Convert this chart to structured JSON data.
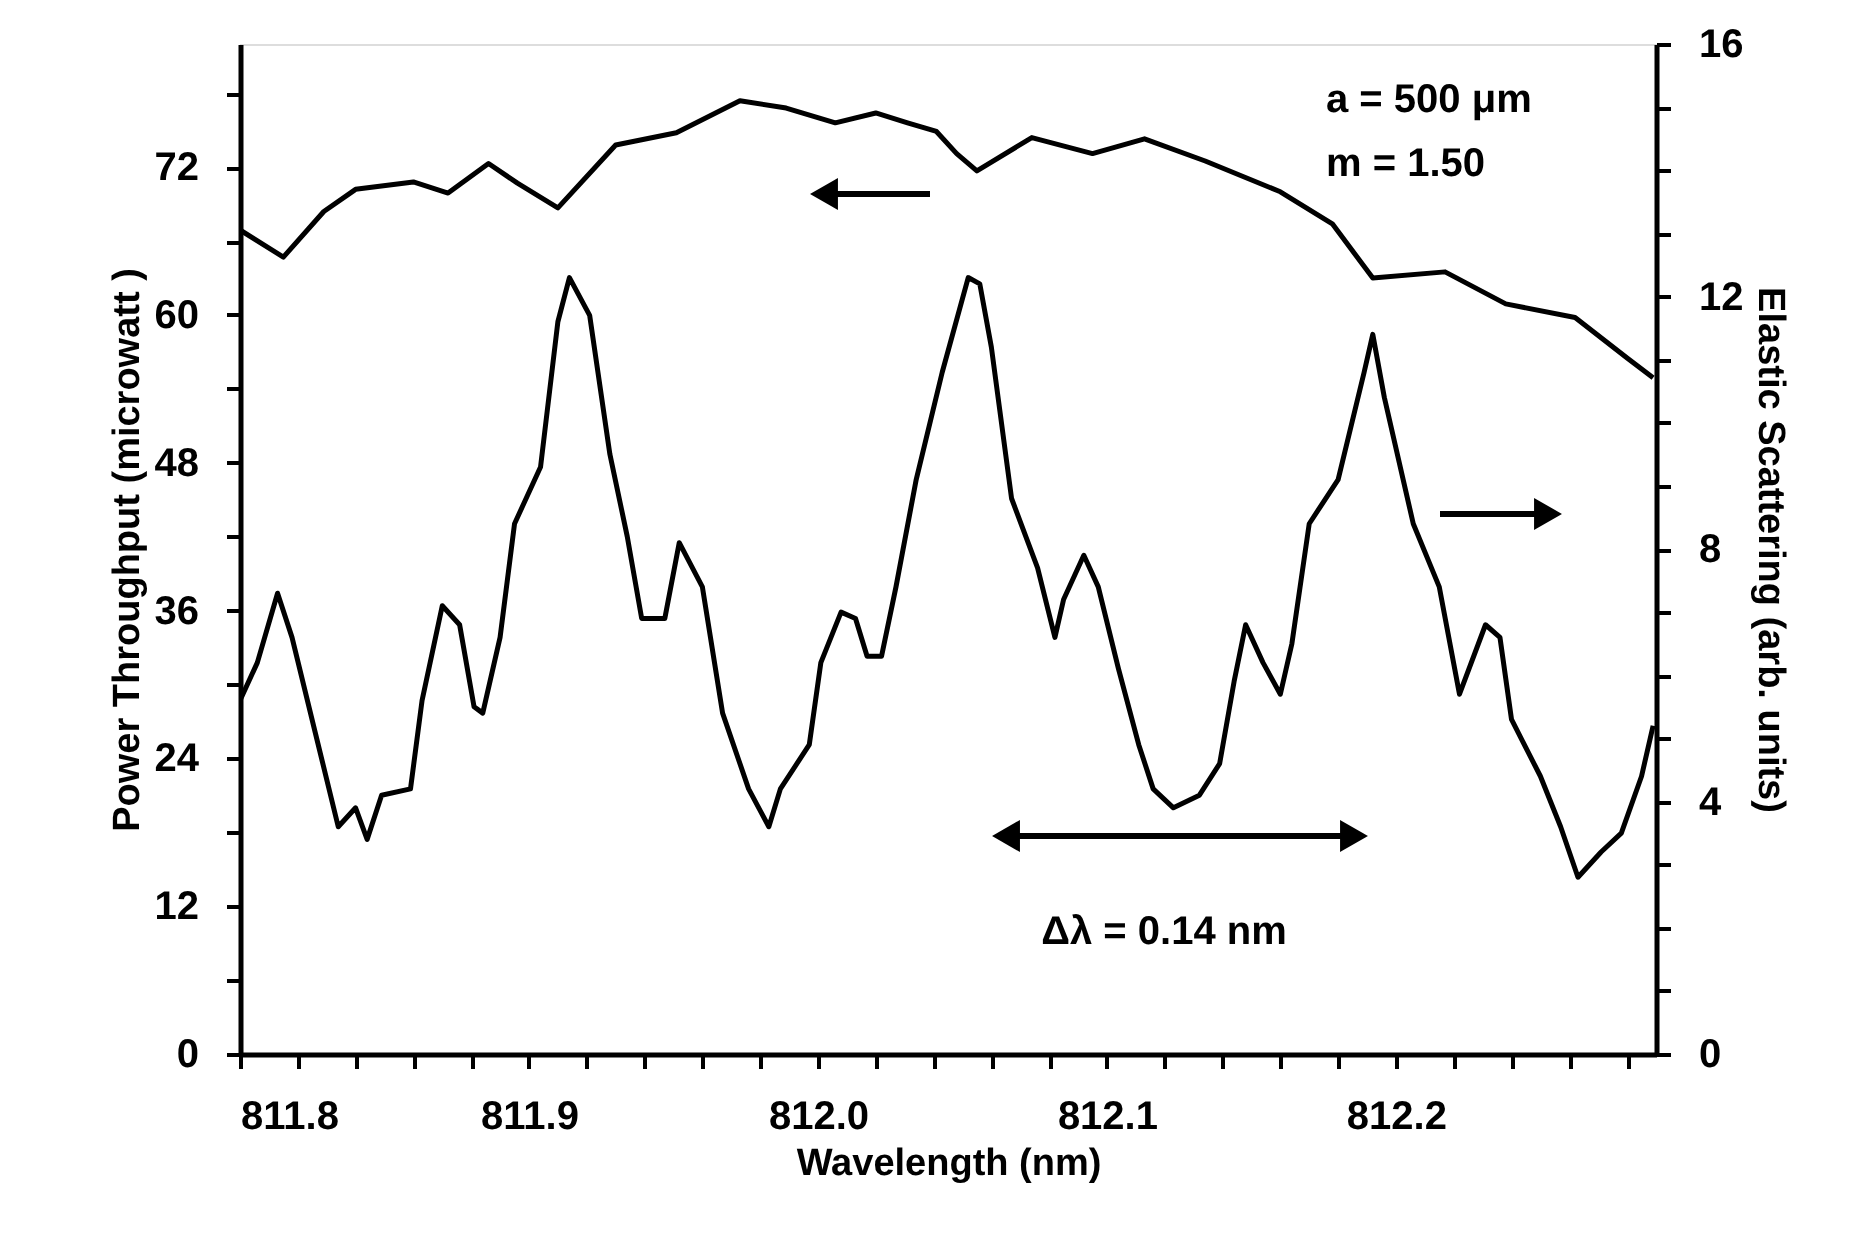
{
  "chart_data": {
    "type": "line",
    "xlabel": "Wavelength (nm)",
    "ylabel": "Power Throughput (microwatt )",
    "y2label": "Elastic Scattering (arb. units)",
    "xlim": [
      811.8,
      812.29
    ],
    "ylim": [
      0,
      82
    ],
    "y2lim": [
      0,
      16
    ],
    "xticks": [
      {
        "value": 811.8,
        "label": "811.8"
      },
      {
        "value": 811.82,
        "label": null
      },
      {
        "value": 811.84,
        "label": null
      },
      {
        "value": 811.86,
        "label": null
      },
      {
        "value": 811.88,
        "label": null
      },
      {
        "value": 811.9,
        "label": "811.9"
      },
      {
        "value": 811.92,
        "label": null
      },
      {
        "value": 811.94,
        "label": null
      },
      {
        "value": 811.96,
        "label": null
      },
      {
        "value": 811.98,
        "label": null
      },
      {
        "value": 812.0,
        "label": "812.0"
      },
      {
        "value": 812.02,
        "label": null
      },
      {
        "value": 812.04,
        "label": null
      },
      {
        "value": 812.06,
        "label": null
      },
      {
        "value": 812.08,
        "label": null
      },
      {
        "value": 812.1,
        "label": "812.1"
      },
      {
        "value": 812.12,
        "label": null
      },
      {
        "value": 812.14,
        "label": null
      },
      {
        "value": 812.16,
        "label": null
      },
      {
        "value": 812.18,
        "label": null
      },
      {
        "value": 812.2,
        "label": "812.2"
      },
      {
        "value": 812.22,
        "label": null
      },
      {
        "value": 812.24,
        "label": null
      },
      {
        "value": 812.26,
        "label": null
      },
      {
        "value": 812.28,
        "label": null
      }
    ],
    "yticks": [
      0,
      {
        "value": 6,
        "label": null
      },
      12,
      {
        "value": 18,
        "label": null
      },
      24,
      {
        "value": 30,
        "label": null
      },
      36,
      {
        "value": 42,
        "label": null
      },
      48,
      {
        "value": 54,
        "label": null
      },
      60,
      {
        "value": 66,
        "label": null
      },
      72,
      {
        "value": 78,
        "label": null
      }
    ],
    "y2ticks": [
      0,
      {
        "value": 1,
        "label": null
      },
      {
        "value": 2,
        "label": null
      },
      {
        "value": 3,
        "label": null
      },
      4,
      {
        "value": 5,
        "label": null
      },
      {
        "value": 6,
        "label": null
      },
      {
        "value": 7,
        "label": null
      },
      8,
      {
        "value": 9,
        "label": null
      },
      {
        "value": 10,
        "label": null
      },
      {
        "value": 11,
        "label": null
      },
      12,
      {
        "value": 13,
        "label": null
      },
      {
        "value": 14,
        "label": null
      },
      {
        "value": 15,
        "label": null
      },
      16
    ],
    "grid": false,
    "marker": "none",
    "line_style": "solid",
    "annotations": [
      "a = 500 μm",
      "m = 1.50",
      "Δλ = 0.14 nm"
    ],
    "series": [
      {
        "color": "#000000",
        "x": [
          811.8,
          811.815,
          811.829,
          811.84,
          811.86,
          811.872,
          811.886,
          811.896,
          811.91,
          811.93,
          811.951,
          811.973,
          811.989,
          812.006,
          812.02,
          812.031,
          812.041,
          812.048,
          812.055,
          812.074,
          812.095,
          812.113,
          812.134,
          812.16,
          812.178,
          812.192,
          812.217,
          812.238,
          812.262,
          812.28,
          812.289
        ],
        "values": [
          66.9,
          64.7,
          68.4,
          70.2,
          70.8,
          69.9,
          72.3,
          70.7,
          68.7,
          73.8,
          74.8,
          77.4,
          76.8,
          75.6,
          76.4,
          75.6,
          74.9,
          73.1,
          71.7,
          74.4,
          73.1,
          74.3,
          72.5,
          70.0,
          67.4,
          63.0,
          63.5,
          60.9,
          59.8,
          56.5,
          54.9
        ]
      },
      {
        "color": "#000000",
        "axis": "y2",
        "x": [
          811.8,
          811.806,
          811.813,
          811.818,
          811.826,
          811.834,
          811.84,
          811.844,
          811.849,
          811.859,
          811.863,
          811.87,
          811.876,
          811.881,
          811.884,
          811.89,
          811.895,
          811.904,
          811.91,
          811.914,
          811.921,
          811.928,
          811.934,
          811.939,
          811.947,
          811.952,
          811.96,
          811.967,
          811.976,
          811.983,
          811.987,
          811.997,
          812.001,
          812.008,
          812.013,
          812.017,
          812.022,
          812.027,
          812.034,
          812.043,
          812.052,
          812.056,
          812.06,
          812.067,
          812.076,
          812.082,
          812.085,
          812.092,
          812.097,
          812.104,
          812.111,
          812.116,
          812.123,
          812.132,
          812.139,
          812.144,
          812.148,
          812.154,
          812.16,
          812.164,
          812.17,
          812.18,
          812.189,
          812.192,
          812.196,
          812.206,
          812.215,
          812.222,
          812.231,
          812.236,
          812.24,
          812.25,
          812.257,
          812.263,
          812.271,
          812.278,
          812.285,
          812.289
        ],
        "values": [
          5.6,
          6.2,
          7.3,
          6.6,
          5.1,
          3.6,
          3.9,
          3.4,
          4.1,
          4.2,
          5.6,
          7.1,
          6.8,
          5.5,
          5.4,
          6.6,
          8.4,
          9.3,
          11.6,
          12.3,
          11.7,
          9.5,
          8.2,
          6.9,
          6.9,
          8.1,
          7.4,
          5.4,
          4.2,
          3.6,
          4.2,
          4.9,
          6.2,
          7.0,
          6.9,
          6.3,
          6.3,
          7.4,
          9.1,
          10.8,
          12.3,
          12.2,
          11.2,
          8.8,
          7.7,
          6.6,
          7.2,
          7.9,
          7.4,
          6.1,
          4.9,
          4.2,
          3.9,
          4.1,
          4.6,
          5.9,
          6.8,
          6.2,
          5.7,
          6.5,
          8.4,
          9.1,
          10.8,
          11.4,
          10.4,
          8.4,
          7.4,
          5.7,
          6.8,
          6.6,
          5.3,
          4.4,
          3.6,
          2.8,
          3.2,
          3.5,
          4.4,
          5.2
        ]
      }
    ]
  }
}
